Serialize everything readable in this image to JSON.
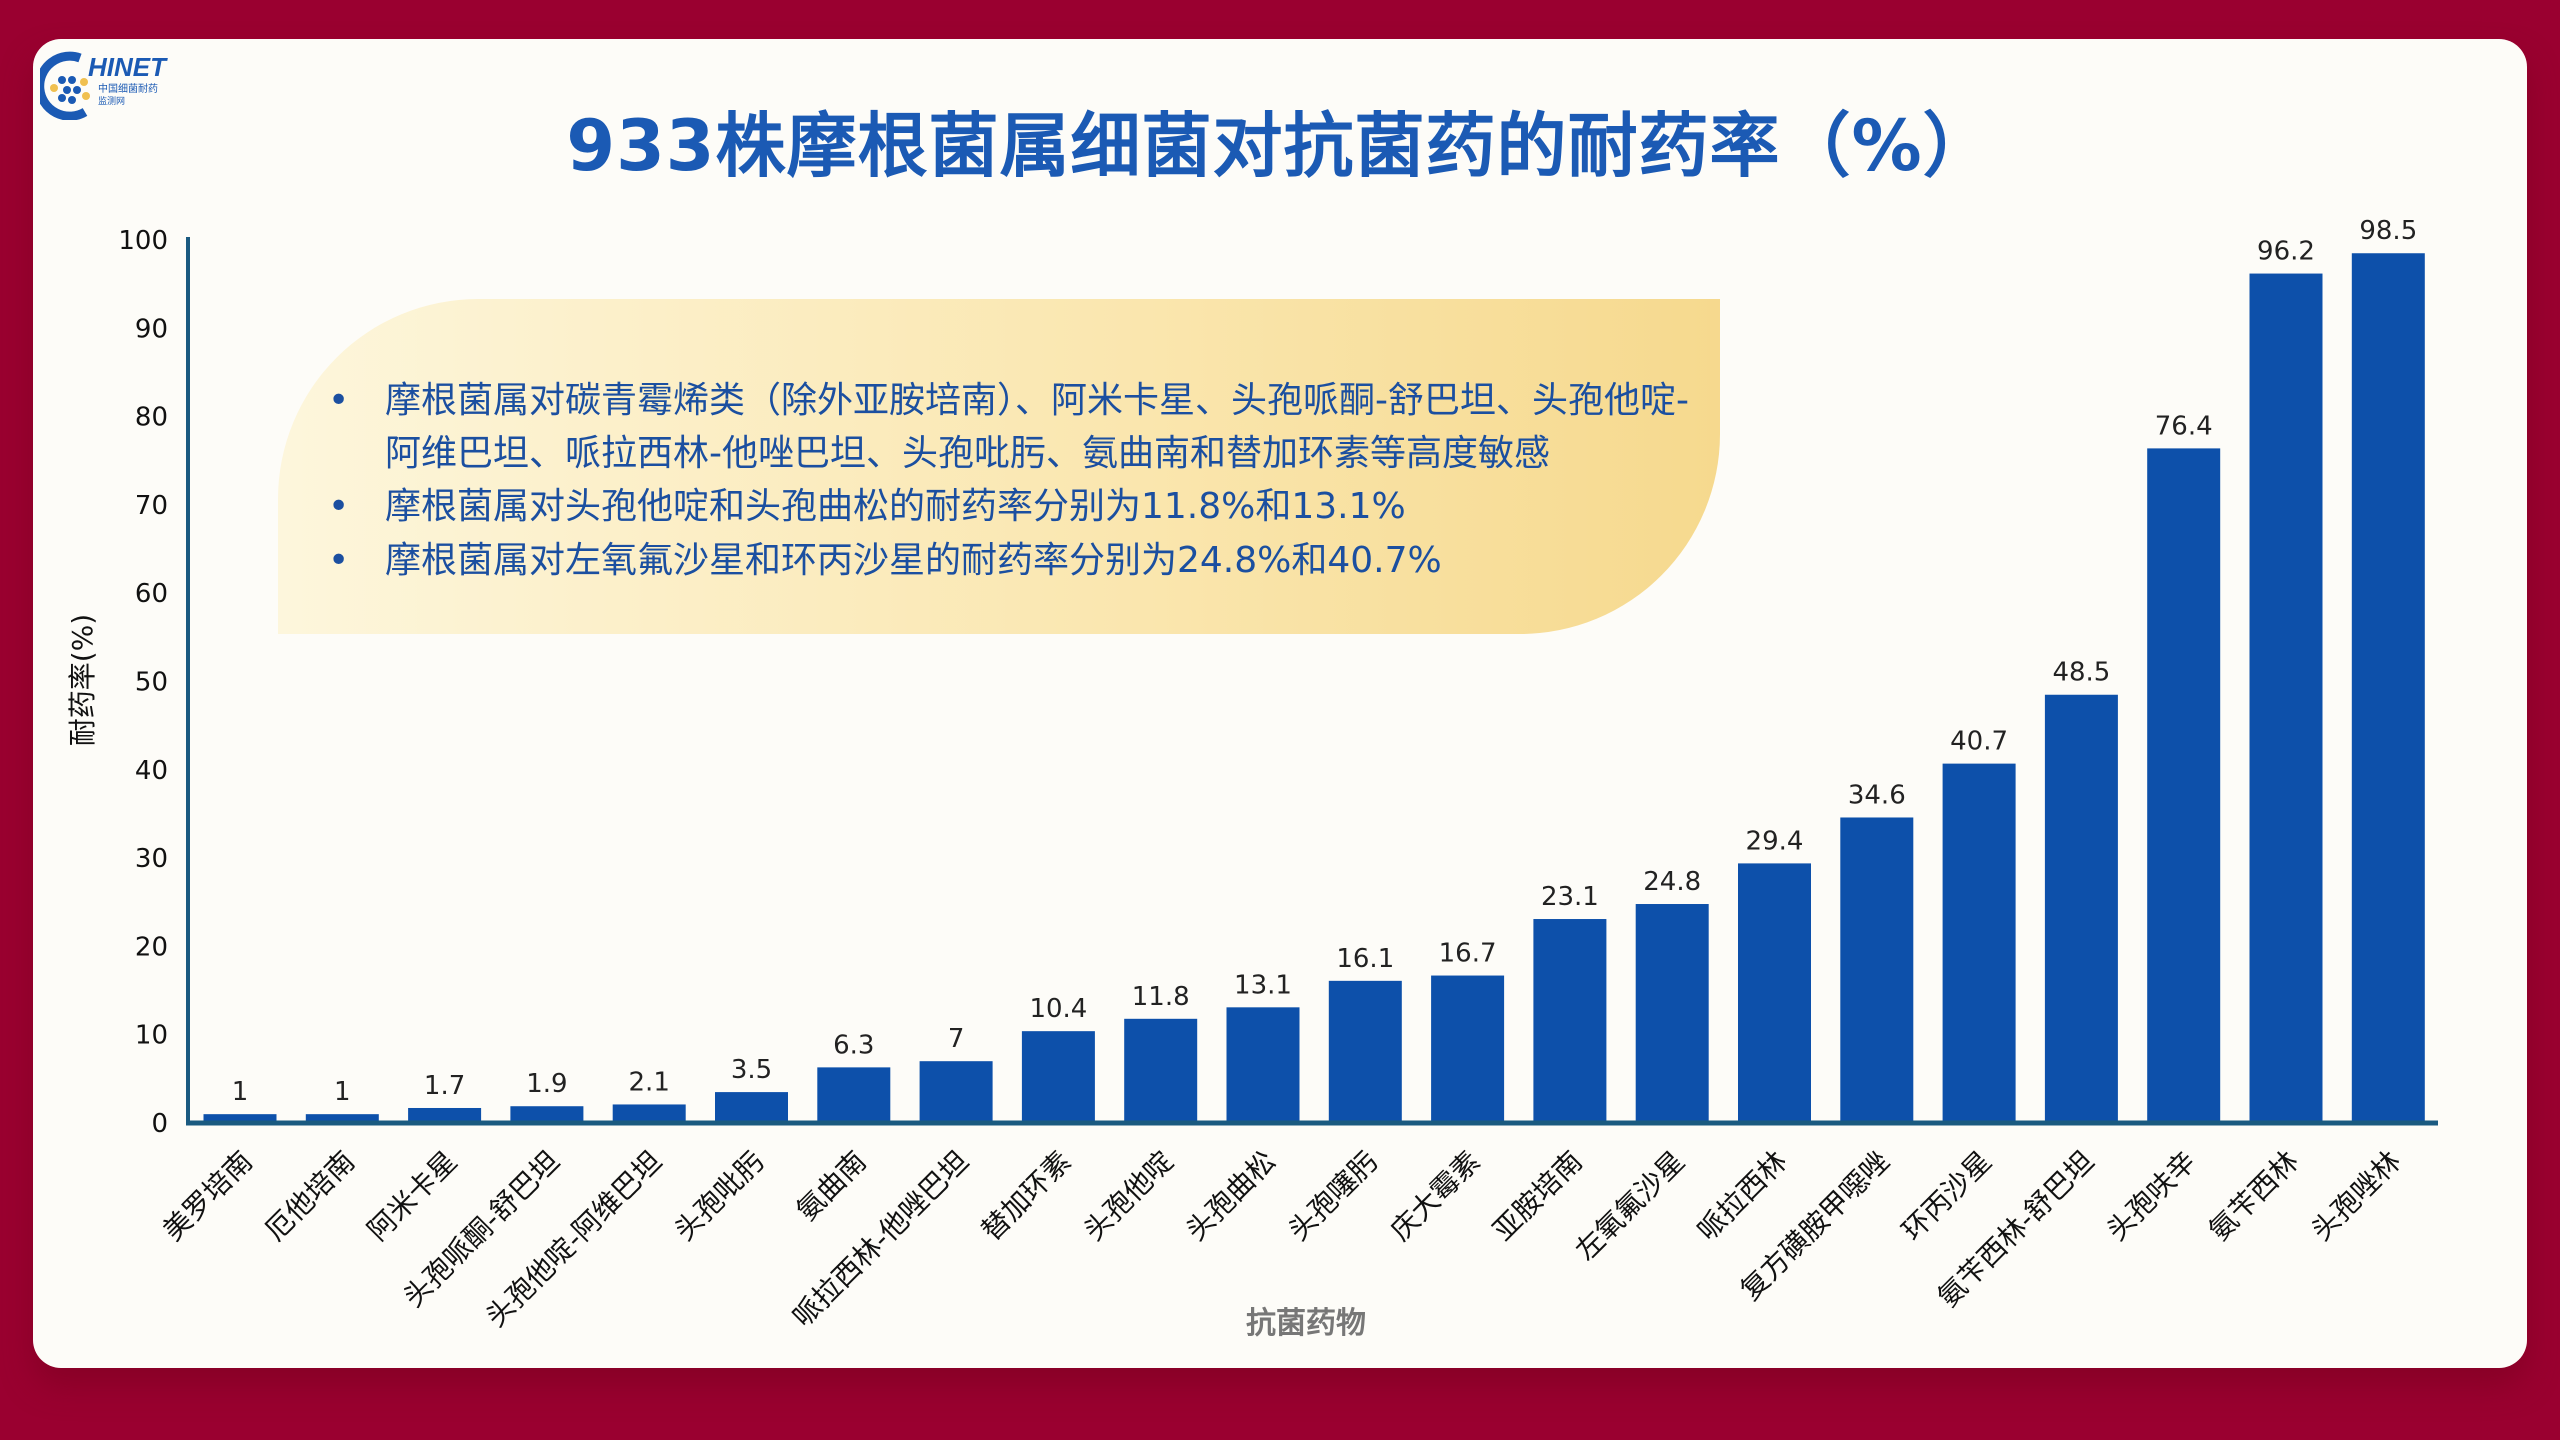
{
  "logo": {
    "name": "CHINET",
    "subtitle": "中国细菌耐药监测网"
  },
  "title": "933株摩根菌属细菌对抗菌药的耐药率（%）",
  "callout": {
    "bullet": "•",
    "items": [
      "摩根菌属对碳青霉烯类（除外亚胺培南）、阿米卡星、头孢哌酮-舒巴坦、头孢他啶-阿维巴坦、哌拉西林-他唑巴坦、头孢吡肟、氨曲南和替加环素等高度敏感",
      "摩根菌属对头孢他啶和头孢曲松的耐药率分别为11.8%和13.1%",
      "摩根菌属对左氧氟沙星和环丙沙星的耐药率分别为24.8%和40.7%"
    ]
  },
  "chart_data": {
    "type": "bar",
    "title": "933株摩根菌属细菌对抗菌药的耐药率（%）",
    "xlabel": "抗菌药物",
    "ylabel": "耐药率(%)",
    "ylim": [
      0,
      100
    ],
    "yticks": [
      "0",
      "10",
      "20",
      "30",
      "40",
      "50",
      "60",
      "70",
      "80",
      "90",
      "100"
    ],
    "categories": [
      "美罗培南",
      "厄他培南",
      "阿米卡星",
      "头孢哌酮-舒巴坦",
      "头孢他啶-阿维巴坦",
      "头孢吡肟",
      "氨曲南",
      "哌拉西林-他唑巴坦",
      "替加环素",
      "头孢他啶",
      "头孢曲松",
      "头孢噻肟",
      "庆大霉素",
      "亚胺培南",
      "左氧氟沙星",
      "哌拉西林",
      "复方磺胺甲噁唑",
      "环丙沙星",
      "氨苄西林-舒巴坦",
      "头孢呋辛",
      "氨苄西林",
      "头孢唑林"
    ],
    "values": [
      1,
      1,
      1.7,
      1.9,
      2.1,
      3.5,
      6.3,
      7,
      10.4,
      11.8,
      13.1,
      16.1,
      16.7,
      23.1,
      24.8,
      29.4,
      34.6,
      40.7,
      48.5,
      76.4,
      96.2,
      98.5
    ],
    "value_labels": [
      "1",
      "1",
      "1.7",
      "1.9",
      "2.1",
      "3.5",
      "6.3",
      "7",
      "10.4",
      "11.8",
      "13.1",
      "16.1",
      "16.7",
      "23.1",
      "24.8",
      "29.4",
      "34.6",
      "40.7",
      "48.5",
      "76.4",
      "96.2",
      "98.5"
    ],
    "grid": false,
    "bar_color": "#0d50aa",
    "axis_color": "#1a5a80"
  }
}
